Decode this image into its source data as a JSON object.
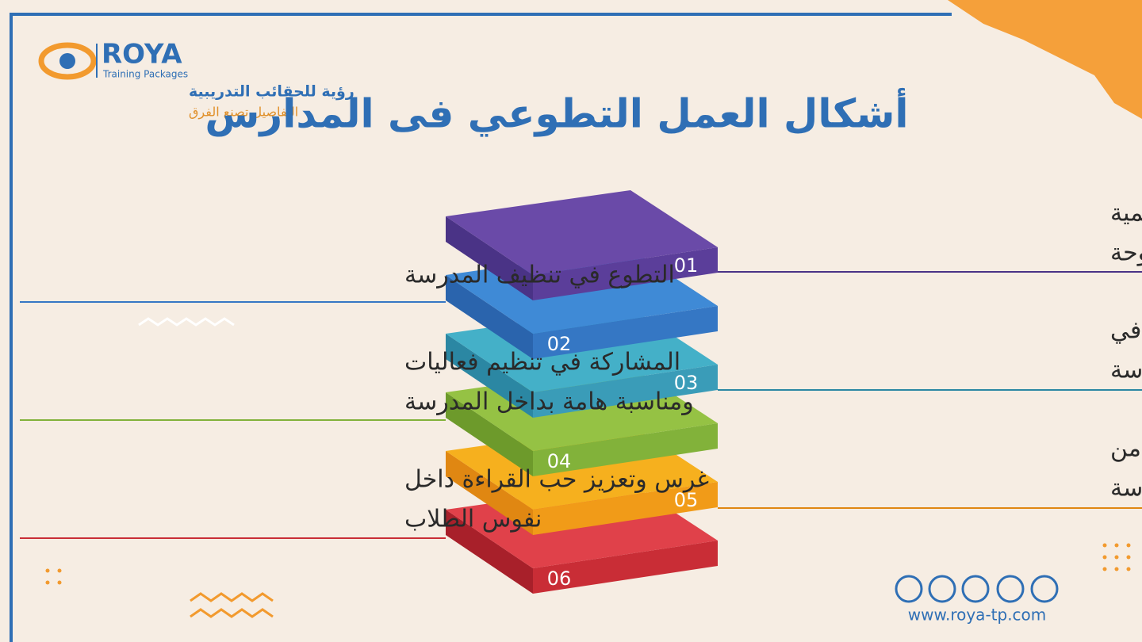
{
  "logo": {
    "brand": "ROYA",
    "tagline": "Training Packages",
    "arabic_name": "رؤية للحقائب التدريبية",
    "slogan": "التفاصيل تصنع الفرق"
  },
  "title": "أشكال العمل التطوعي فى المدارس",
  "items": [
    {
      "number": "01",
      "lines": [
        "الاشتراك فى الأنشطة التعليمية",
        "من عمل مجلة أو لوحة"
      ]
    },
    {
      "number": "02",
      "lines": [
        "التطوع في تنظيف المدرسة"
      ]
    },
    {
      "number": "03",
      "lines": [
        "التطوع في العمل الزراعي في",
        "حديقة المدرسة"
      ]
    },
    {
      "number": "04",
      "lines": [
        "المشاركة في تنظيم فعاليات",
        "ومناسبة هامة بداخل المدرسة"
      ]
    },
    {
      "number": "05",
      "lines": [
        "تخصيص مبلغ مالي معين من",
        "أجل تطوير مرافق المدرسة"
      ]
    },
    {
      "number": "06",
      "lines": [
        "غرس وتعزيز حب القراءة داخل",
        "نفوس الطلاب"
      ]
    }
  ],
  "footer": {
    "website": "www.roya-tp.com"
  }
}
